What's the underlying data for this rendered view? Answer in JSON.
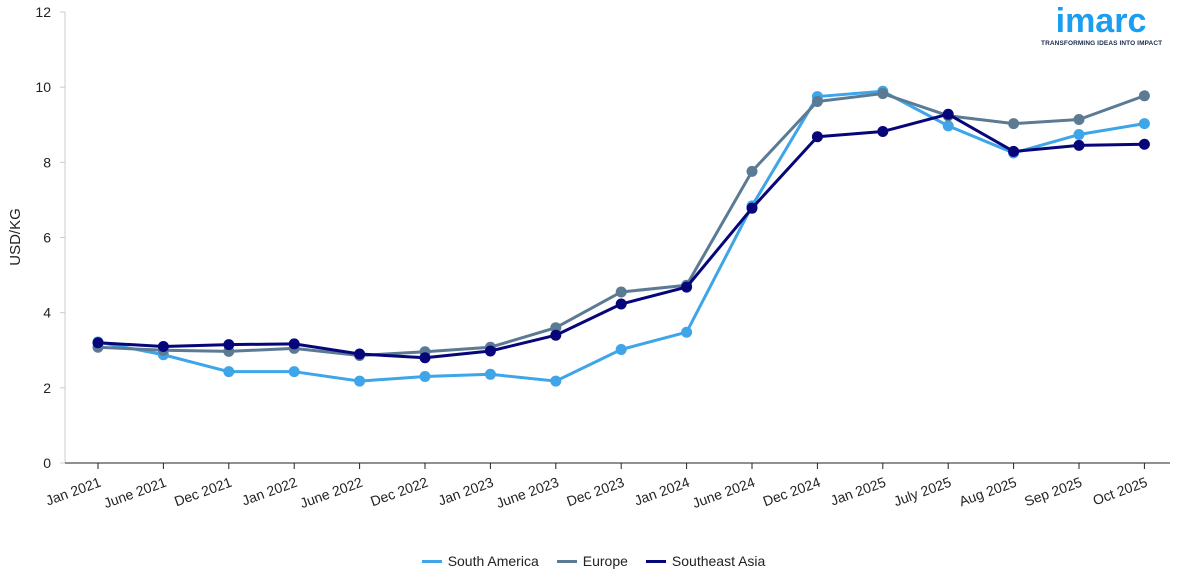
{
  "chart_data": {
    "type": "line",
    "title": "",
    "xlabel": "",
    "ylabel": "USD/KG",
    "ylim": [
      0,
      12
    ],
    "yticks": [
      0,
      2,
      4,
      6,
      8,
      10,
      12
    ],
    "grid": false,
    "legend_position": "bottom-center",
    "categories": [
      "Jan 2021",
      "June 2021",
      "Dec 2021",
      "Jan 2022",
      "June 2022",
      "Dec 2022",
      "Jan 2023",
      "June 2023",
      "Dec 2023",
      "Jan 2024",
      "June 2024",
      "Dec 2024",
      "Jan 2025",
      "July 2025",
      "Aug 2025",
      "Sep 2025",
      "Oct 2025"
    ],
    "series": [
      {
        "name": "South America",
        "color": "#3da5e8",
        "values": [
          3.22,
          2.88,
          2.43,
          2.43,
          2.18,
          2.3,
          2.36,
          2.18,
          3.02,
          3.48,
          6.84,
          9.75,
          9.89,
          8.97,
          8.25,
          8.74,
          9.03
        ]
      },
      {
        "name": "Europe",
        "color": "#5b7a94",
        "values": [
          3.08,
          3.0,
          2.97,
          3.05,
          2.86,
          2.96,
          3.08,
          3.6,
          4.55,
          4.73,
          7.76,
          9.62,
          9.83,
          9.24,
          9.03,
          9.14,
          9.77
        ]
      },
      {
        "name": "Southeast Asia",
        "color": "#06067a",
        "values": [
          3.2,
          3.1,
          3.15,
          3.17,
          2.9,
          2.8,
          2.98,
          3.4,
          4.23,
          4.68,
          6.78,
          8.68,
          8.82,
          9.28,
          8.29,
          8.45,
          8.48
        ]
      }
    ]
  },
  "logo": {
    "word": "imarc",
    "tagline": "TRANSFORMING IDEAS INTO IMPACT",
    "color": "#1b9ef0"
  }
}
